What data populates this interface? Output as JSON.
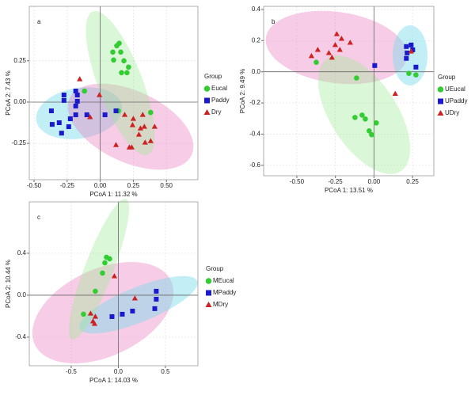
{
  "chart_data": [
    {
      "type": "scatter",
      "label": "a",
      "xlabel": "PCoA 1:  11.32 %",
      "ylabel": "PCoA 2:  7.43 %",
      "legend_title": "Group",
      "xlim": [
        -0.536,
        0.738
      ],
      "ylim": [
        -0.47,
        0.58
      ],
      "xticks": [
        {
          "value": -0.5,
          "label": "-0.50"
        },
        -0.25,
        {
          "value": 0,
          "label": "0.00"
        },
        0.25,
        {
          "value": 0.5,
          "label": "0.50"
        }
      ],
      "yticks": [
        -0.25,
        {
          "value": 0,
          "label": "0.00"
        },
        0.25
      ],
      "grid": true,
      "series": [
        {
          "name": "Eucal",
          "color": "#33cc33",
          "marker": "circle",
          "x": [
            0.143,
            0.125,
            0.095,
            0.155,
            0.101,
            0.179,
            0.214,
            0.161,
            0.202,
            -0.119,
            0.137,
            0.381
          ],
          "values": [
            0.356,
            0.341,
            0.303,
            0.303,
            0.255,
            0.25,
            0.212,
            0.178,
            0.178,
            0.067,
            -0.053,
            -0.063
          ]
        },
        {
          "name": "Paddy",
          "color": "#1a1acc",
          "marker": "square",
          "x": [
            -0.274,
            -0.274,
            -0.185,
            -0.173,
            -0.173,
            -0.185,
            -0.369,
            -0.363,
            -0.31,
            -0.292,
            -0.238,
            -0.226,
            -0.185,
            -0.101,
            0.036,
            0.119
          ],
          "values": [
            0.043,
            0.01,
            0.067,
            0.043,
            0.005,
            -0.024,
            -0.053,
            -0.135,
            -0.125,
            -0.188,
            -0.149,
            -0.101,
            -0.077,
            -0.077,
            -0.077,
            -0.053
          ]
        },
        {
          "name": "Dry",
          "color": "#cc2222",
          "marker": "triangle",
          "x": [
            -0.155,
            -0.006,
            0.185,
            0.25,
            0.321,
            0.244,
            0.304,
            0.292,
            0.333,
            0.411,
            0.119,
            0.22,
            0.238,
            0.339,
            0.381,
            -0.077
          ],
          "values": [
            0.139,
            0.043,
            -0.077,
            -0.101,
            -0.077,
            -0.139,
            -0.159,
            -0.197,
            -0.149,
            -0.149,
            -0.26,
            -0.274,
            -0.274,
            -0.245,
            -0.236,
            -0.091
          ]
        }
      ]
    },
    {
      "type": "scatter",
      "label": "b",
      "xlabel": "PCoA 1:  13.51 %",
      "ylabel": "PCoA 2:  9.49 %",
      "legend_title": "Group",
      "xlim": [
        -0.715,
        0.388
      ],
      "ylim": [
        -0.667,
        0.42
      ],
      "xticks": [
        {
          "value": -0.5,
          "label": "-0.50"
        },
        -0.25,
        {
          "value": 0,
          "label": "0.00"
        },
        0.25
      ],
      "yticks": [
        0.4,
        0.2,
        {
          "value": 0,
          "label": "0.0"
        },
        -0.2,
        -0.4,
        -0.6
      ],
      "grid": true,
      "series": [
        {
          "name": "UEucal",
          "color": "#33cc33",
          "marker": "circle",
          "x": [
            -0.374,
            -0.113,
            -0.123,
            -0.077,
            -0.056,
            0.015,
            -0.031,
            -0.015,
            0.226,
            0.272
          ],
          "values": [
            0.061,
            -0.04,
            -0.293,
            -0.278,
            -0.303,
            -0.328,
            -0.379,
            -0.404,
            -0.01,
            -0.02
          ]
        },
        {
          "name": "UPaddy",
          "color": "#1a1acc",
          "marker": "square",
          "x": [
            0.005,
            0.21,
            0.241,
            0.251,
            0.215,
            0.21,
            0.272
          ],
          "values": [
            0.04,
            0.162,
            0.172,
            0.141,
            0.121,
            0.086,
            0.03
          ]
        },
        {
          "name": "UDry",
          "color": "#cc2222",
          "marker": "triangle",
          "x": [
            -0.241,
            -0.21,
            -0.154,
            -0.251,
            -0.364,
            -0.405,
            -0.272,
            -0.221,
            -0.292,
            0.241,
            0.138
          ],
          "values": [
            0.242,
            0.212,
            0.187,
            0.172,
            0.141,
            0.101,
            0.091,
            0.141,
            0.121,
            0.131,
            -0.141
          ]
        }
      ]
    },
    {
      "type": "scatter",
      "label": "c",
      "xlabel": "PCoA 1:  14.03 %",
      "ylabel": "PCoA 2:  10.44 %",
      "legend_title": "Group",
      "xlim": [
        -0.945,
        0.845
      ],
      "ylim": [
        -0.672,
        0.89
      ],
      "xticks": [
        -0.5,
        {
          "value": 0,
          "label": "0.0"
        },
        0.5
      ],
      "yticks": [
        0.4,
        {
          "value": 0,
          "label": "0.0"
        },
        -0.4
      ],
      "grid": true,
      "series": [
        {
          "name": "MEucal",
          "color": "#33cc33",
          "marker": "circle",
          "x": [
            -0.126,
            -0.092,
            -0.143,
            -0.168,
            -0.244,
            -0.37
          ],
          "values": [
            0.362,
            0.347,
            0.309,
            0.211,
            0.038,
            -0.181
          ]
        },
        {
          "name": "MPaddy",
          "color": "#1a1acc",
          "marker": "square",
          "x": [
            0.403,
            0.403,
            0.387,
            0.151,
            0.042,
            -0.067
          ],
          "values": [
            0.038,
            -0.038,
            -0.128,
            -0.151,
            -0.181,
            -0.204
          ]
        },
        {
          "name": "MDry",
          "color": "#cc2222",
          "marker": "triangle",
          "x": [
            -0.042,
            -0.294,
            -0.244,
            -0.269,
            -0.252,
            0.176
          ],
          "values": [
            0.181,
            -0.174,
            -0.204,
            -0.249,
            -0.272,
            -0.03
          ]
        }
      ]
    }
  ]
}
